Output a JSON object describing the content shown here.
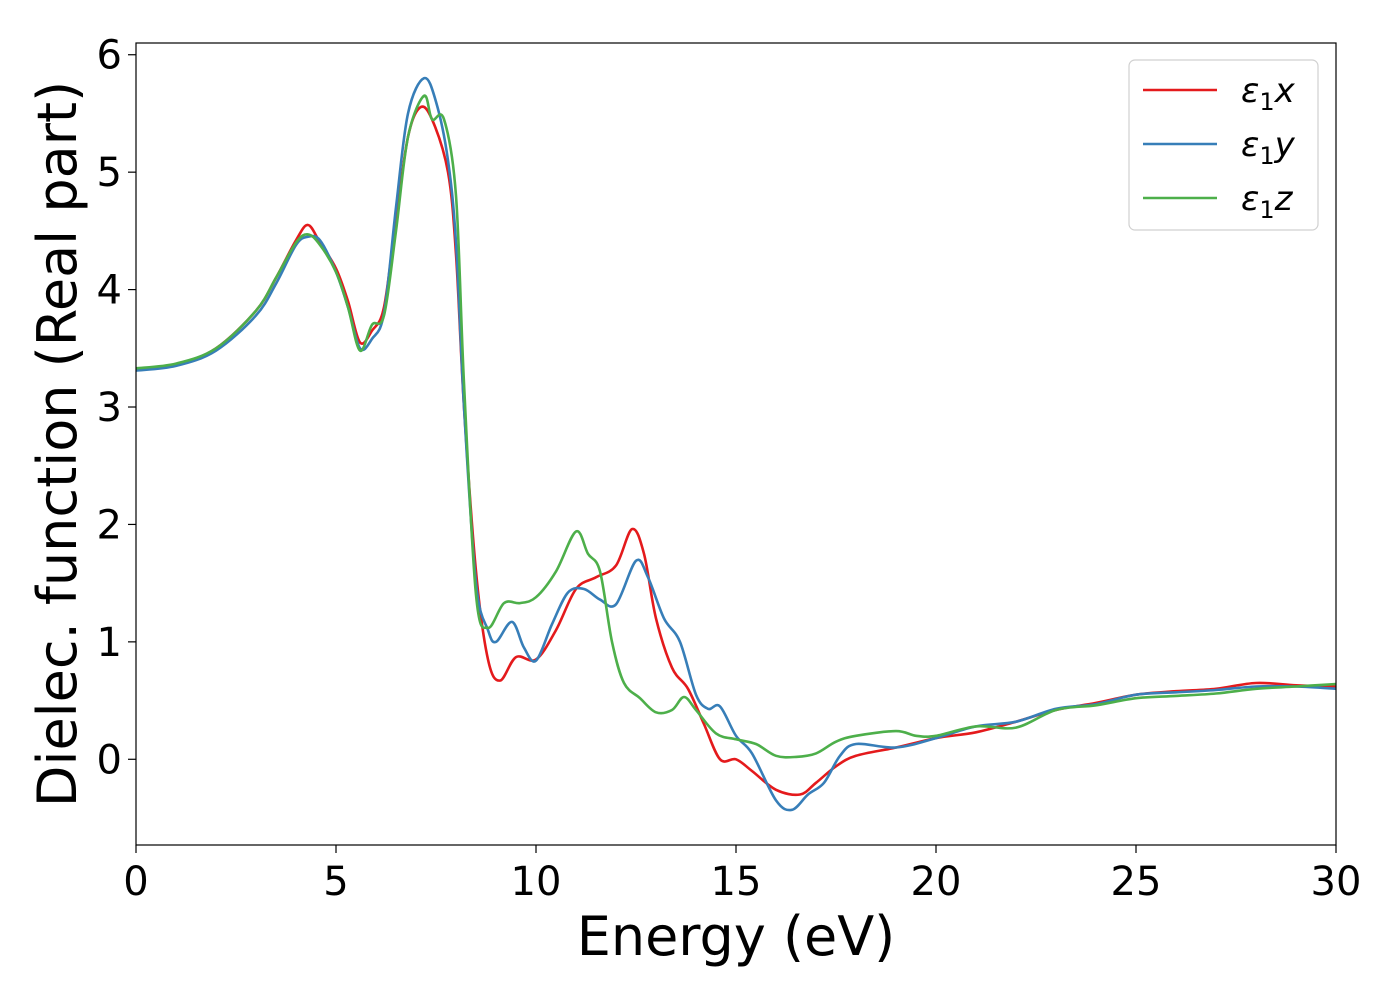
{
  "chart_data": {
    "type": "line",
    "title": "",
    "xlabel": "Energy (eV)",
    "ylabel": "Dielec. function (Real part)",
    "xlim": [
      0,
      30
    ],
    "ylim": [
      -0.73,
      6.1
    ],
    "xticks": [
      0,
      5,
      10,
      15,
      20,
      25,
      30
    ],
    "xtick_labels": [
      "0",
      "5",
      "10",
      "15",
      "20",
      "25",
      "30"
    ],
    "yticks": [
      0,
      1,
      2,
      3,
      4,
      5,
      6
    ],
    "ytick_labels": [
      "0",
      "1",
      "2",
      "3",
      "4",
      "5",
      "6"
    ],
    "grid": false,
    "legend_position": "top-right",
    "series": [
      {
        "name": "x",
        "legend_symbol": "ε",
        "legend_sub": "1",
        "legend_var": "x",
        "color": "#e41a1c",
        "points": [
          [
            0,
            3.32
          ],
          [
            1,
            3.36
          ],
          [
            2,
            3.5
          ],
          [
            3,
            3.82
          ],
          [
            3.5,
            4.1
          ],
          [
            4,
            4.42
          ],
          [
            4.3,
            4.55
          ],
          [
            4.6,
            4.4
          ],
          [
            5,
            4.18
          ],
          [
            5.3,
            3.9
          ],
          [
            5.6,
            3.55
          ],
          [
            5.9,
            3.65
          ],
          [
            6.2,
            3.85
          ],
          [
            6.5,
            4.6
          ],
          [
            6.8,
            5.3
          ],
          [
            7.1,
            5.55
          ],
          [
            7.4,
            5.45
          ],
          [
            7.8,
            5.0
          ],
          [
            8.0,
            4.3
          ],
          [
            8.2,
            3.0
          ],
          [
            8.5,
            1.6
          ],
          [
            8.8,
            0.85
          ],
          [
            9.1,
            0.67
          ],
          [
            9.5,
            0.87
          ],
          [
            10,
            0.85
          ],
          [
            10.5,
            1.1
          ],
          [
            11,
            1.45
          ],
          [
            11.5,
            1.55
          ],
          [
            12,
            1.65
          ],
          [
            12.4,
            1.96
          ],
          [
            12.7,
            1.75
          ],
          [
            13,
            1.2
          ],
          [
            13.4,
            0.78
          ],
          [
            13.8,
            0.6
          ],
          [
            14.2,
            0.3
          ],
          [
            14.6,
            0.0
          ],
          [
            15,
            0.0
          ],
          [
            15.4,
            -0.1
          ],
          [
            16,
            -0.26
          ],
          [
            16.6,
            -0.3
          ],
          [
            17,
            -0.2
          ],
          [
            17.5,
            -0.06
          ],
          [
            18,
            0.03
          ],
          [
            19,
            0.1
          ],
          [
            20,
            0.18
          ],
          [
            21,
            0.23
          ],
          [
            22,
            0.32
          ],
          [
            23,
            0.42
          ],
          [
            24,
            0.48
          ],
          [
            25,
            0.55
          ],
          [
            26,
            0.58
          ],
          [
            27,
            0.6
          ],
          [
            28,
            0.65
          ],
          [
            29,
            0.63
          ],
          [
            30,
            0.62
          ]
        ]
      },
      {
        "name": "y",
        "legend_symbol": "ε",
        "legend_sub": "1",
        "legend_var": "y",
        "color": "#377eb8",
        "points": [
          [
            0,
            3.31
          ],
          [
            1,
            3.35
          ],
          [
            2,
            3.48
          ],
          [
            3,
            3.78
          ],
          [
            3.5,
            4.05
          ],
          [
            4,
            4.38
          ],
          [
            4.3,
            4.45
          ],
          [
            4.6,
            4.42
          ],
          [
            5,
            4.15
          ],
          [
            5.3,
            3.85
          ],
          [
            5.6,
            3.5
          ],
          [
            5.9,
            3.58
          ],
          [
            6.2,
            3.8
          ],
          [
            6.5,
            4.7
          ],
          [
            6.8,
            5.5
          ],
          [
            7.2,
            5.8
          ],
          [
            7.5,
            5.6
          ],
          [
            7.8,
            5.1
          ],
          [
            8.0,
            4.4
          ],
          [
            8.2,
            3.0
          ],
          [
            8.5,
            1.5
          ],
          [
            8.8,
            1.1
          ],
          [
            9.0,
            1.0
          ],
          [
            9.4,
            1.17
          ],
          [
            9.7,
            0.95
          ],
          [
            10,
            0.84
          ],
          [
            10.4,
            1.15
          ],
          [
            10.8,
            1.42
          ],
          [
            11.2,
            1.45
          ],
          [
            11.6,
            1.36
          ],
          [
            12,
            1.32
          ],
          [
            12.5,
            1.69
          ],
          [
            12.8,
            1.55
          ],
          [
            13.2,
            1.2
          ],
          [
            13.6,
            1.0
          ],
          [
            14,
            0.55
          ],
          [
            14.3,
            0.43
          ],
          [
            14.6,
            0.45
          ],
          [
            15,
            0.2
          ],
          [
            15.4,
            0.05
          ],
          [
            16,
            -0.35
          ],
          [
            16.4,
            -0.43
          ],
          [
            16.8,
            -0.3
          ],
          [
            17.2,
            -0.2
          ],
          [
            17.6,
            0.03
          ],
          [
            18,
            0.13
          ],
          [
            19,
            0.1
          ],
          [
            20,
            0.18
          ],
          [
            21,
            0.28
          ],
          [
            22,
            0.32
          ],
          [
            23,
            0.43
          ],
          [
            24,
            0.47
          ],
          [
            25,
            0.55
          ],
          [
            26,
            0.57
          ],
          [
            27,
            0.59
          ],
          [
            28,
            0.62
          ],
          [
            29,
            0.62
          ],
          [
            30,
            0.6
          ]
        ]
      },
      {
        "name": "z",
        "legend_symbol": "ε",
        "legend_sub": "1",
        "legend_var": "z",
        "color": "#4daf4a",
        "points": [
          [
            0,
            3.33
          ],
          [
            1,
            3.37
          ],
          [
            2,
            3.5
          ],
          [
            3,
            3.82
          ],
          [
            3.5,
            4.1
          ],
          [
            4,
            4.4
          ],
          [
            4.3,
            4.47
          ],
          [
            4.6,
            4.38
          ],
          [
            5,
            4.15
          ],
          [
            5.3,
            3.85
          ],
          [
            5.6,
            3.48
          ],
          [
            5.9,
            3.7
          ],
          [
            6.2,
            3.78
          ],
          [
            6.5,
            4.5
          ],
          [
            6.8,
            5.3
          ],
          [
            7.2,
            5.65
          ],
          [
            7.4,
            5.45
          ],
          [
            7.7,
            5.45
          ],
          [
            8.0,
            4.8
          ],
          [
            8.2,
            3.2
          ],
          [
            8.5,
            1.4
          ],
          [
            8.8,
            1.12
          ],
          [
            9.2,
            1.33
          ],
          [
            9.6,
            1.33
          ],
          [
            10,
            1.38
          ],
          [
            10.5,
            1.6
          ],
          [
            11,
            1.94
          ],
          [
            11.3,
            1.75
          ],
          [
            11.6,
            1.6
          ],
          [
            11.9,
            1.0
          ],
          [
            12.2,
            0.65
          ],
          [
            12.6,
            0.52
          ],
          [
            13,
            0.4
          ],
          [
            13.4,
            0.42
          ],
          [
            13.7,
            0.53
          ],
          [
            14,
            0.42
          ],
          [
            14.5,
            0.22
          ],
          [
            15,
            0.17
          ],
          [
            15.5,
            0.13
          ],
          [
            16,
            0.03
          ],
          [
            16.5,
            0.02
          ],
          [
            17,
            0.05
          ],
          [
            17.5,
            0.15
          ],
          [
            18,
            0.2
          ],
          [
            19,
            0.24
          ],
          [
            19.5,
            0.2
          ],
          [
            20,
            0.2
          ],
          [
            21,
            0.28
          ],
          [
            22,
            0.27
          ],
          [
            23,
            0.42
          ],
          [
            24,
            0.46
          ],
          [
            25,
            0.52
          ],
          [
            26,
            0.54
          ],
          [
            27,
            0.56
          ],
          [
            28,
            0.6
          ],
          [
            29,
            0.62
          ],
          [
            30,
            0.64
          ]
        ]
      }
    ]
  }
}
